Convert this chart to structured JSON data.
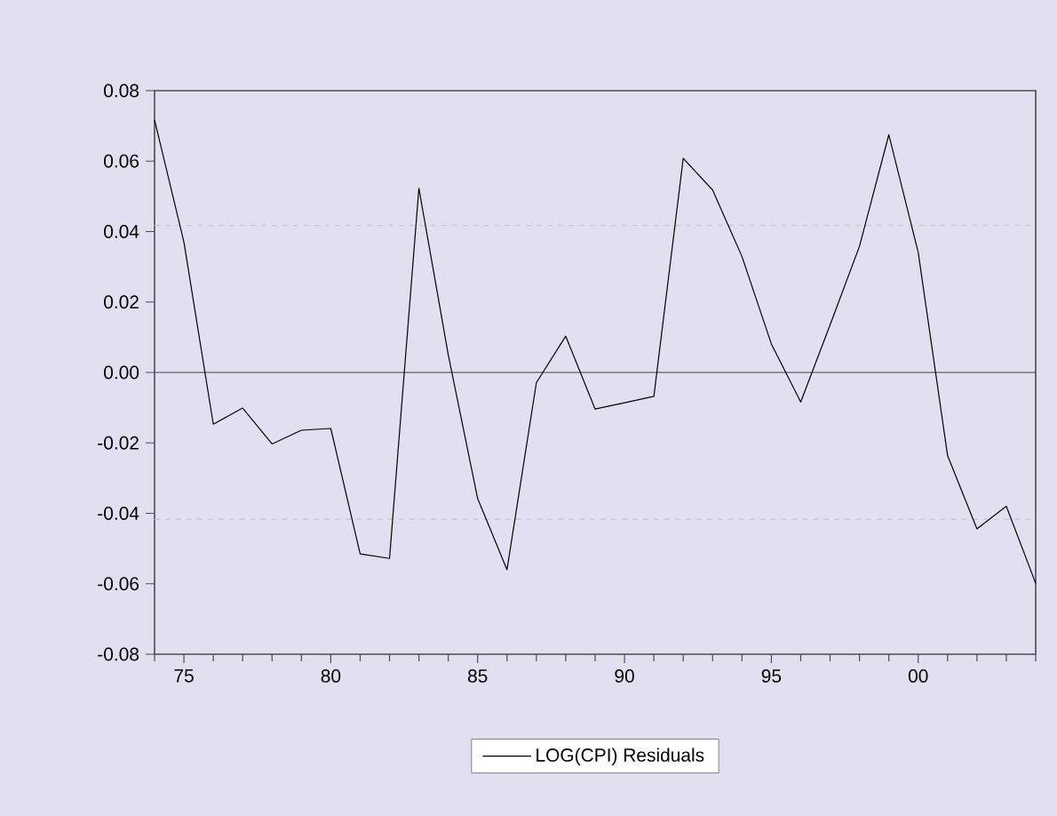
{
  "chart_data": {
    "type": "line",
    "x": [
      1974,
      1975,
      1976,
      1977,
      1978,
      1979,
      1980,
      1981,
      1982,
      1983,
      1984,
      1985,
      1986,
      1987,
      1988,
      1989,
      1990,
      1991,
      1992,
      1993,
      1994,
      1995,
      1996,
      1997,
      1998,
      1999,
      2000,
      2001,
      2002,
      2003,
      2004
    ],
    "series": [
      {
        "name": "LOG(CPI) Residuals",
        "color": "#000000",
        "values": [
          0.0717,
          0.037,
          -0.0147,
          -0.0101,
          -0.0203,
          -0.0164,
          -0.0159,
          -0.0515,
          -0.0528,
          0.0523,
          0.005,
          -0.0358,
          -0.056,
          -0.0029,
          0.0103,
          -0.0104,
          -0.0086,
          -0.0068,
          0.0608,
          0.0518,
          0.0329,
          0.0081,
          -0.0084,
          0.0135,
          0.0358,
          0.0675,
          0.0341,
          -0.0236,
          -0.0444,
          -0.038,
          -0.0599
        ]
      }
    ],
    "xlim": [
      1974,
      2004
    ],
    "xticks": [
      {
        "value": 1974,
        "label": null
      },
      {
        "value": 1975,
        "label": "75"
      },
      {
        "value": 1976,
        "label": null
      },
      {
        "value": 1977,
        "label": null
      },
      {
        "value": 1978,
        "label": null
      },
      {
        "value": 1979,
        "label": null
      },
      {
        "value": 1980,
        "label": "80"
      },
      {
        "value": 1981,
        "label": null
      },
      {
        "value": 1982,
        "label": null
      },
      {
        "value": 1983,
        "label": null
      },
      {
        "value": 1984,
        "label": null
      },
      {
        "value": 1985,
        "label": "85"
      },
      {
        "value": 1986,
        "label": null
      },
      {
        "value": 1987,
        "label": null
      },
      {
        "value": 1988,
        "label": null
      },
      {
        "value": 1989,
        "label": null
      },
      {
        "value": 1990,
        "label": "90"
      },
      {
        "value": 1991,
        "label": null
      },
      {
        "value": 1992,
        "label": null
      },
      {
        "value": 1993,
        "label": null
      },
      {
        "value": 1994,
        "label": null
      },
      {
        "value": 1995,
        "label": "95"
      },
      {
        "value": 1996,
        "label": null
      },
      {
        "value": 1997,
        "label": null
      },
      {
        "value": 1998,
        "label": null
      },
      {
        "value": 1999,
        "label": null
      },
      {
        "value": 2000,
        "label": "00"
      },
      {
        "value": 2001,
        "label": null
      },
      {
        "value": 2002,
        "label": null
      },
      {
        "value": 2003,
        "label": null
      },
      {
        "value": 2004,
        "label": null
      }
    ],
    "ylim": [
      -0.08,
      0.08
    ],
    "yticks": [
      {
        "value": -0.08,
        "label": "-0.08"
      },
      {
        "value": -0.06,
        "label": "-0.06"
      },
      {
        "value": -0.04,
        "label": "-0.04"
      },
      {
        "value": -0.02,
        "label": "-0.02"
      },
      {
        "value": 0,
        "label": "0.00"
      },
      {
        "value": 0.02,
        "label": "0.02"
      },
      {
        "value": 0.04,
        "label": "0.04"
      },
      {
        "value": 0.06,
        "label": "0.06"
      },
      {
        "value": 0.08,
        "label": "0.08"
      }
    ],
    "ref_lines": [
      {
        "axis": "y",
        "value": 0,
        "color": "#444444",
        "line_style": "solid"
      },
      {
        "axis": "y",
        "value": 0.0417,
        "color": "#c4c4c4",
        "line_style": "dashed"
      },
      {
        "axis": "y",
        "value": -0.0417,
        "color": "#c4c4c4",
        "line_style": "dashed"
      }
    ],
    "legend": "bottom",
    "marker": "none",
    "line_style": "solid"
  }
}
